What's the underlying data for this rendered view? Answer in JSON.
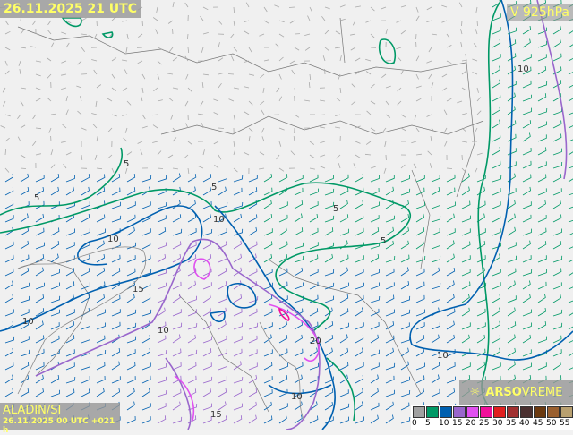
{
  "header": {
    "valid_time": "26.11.2025 21 UTC",
    "level": "V 925hPa"
  },
  "model": {
    "name": "ALADIN/SI",
    "run": "26.11.2025 00 UTC +021 h"
  },
  "brand": {
    "icon": "sun-icon",
    "name_bold": "ARSO",
    "name_rest": "VREME"
  },
  "legend": {
    "ticks": [
      "0",
      "5",
      "10",
      "15",
      "20",
      "25",
      "30",
      "35",
      "40",
      "45",
      "50",
      "55"
    ],
    "colors": [
      "#a0a0a0",
      "#009966",
      "#0060b0",
      "#9966cc",
      "#e050f0",
      "#f0109a",
      "#e02020",
      "#a03030",
      "#4a3030",
      "#6b3a10",
      "#9a6030",
      "#b8a070"
    ]
  },
  "contour_labels": [
    "5",
    "5",
    "5",
    "5",
    "5",
    "10",
    "10",
    "10",
    "10",
    "10",
    "10",
    "10",
    "15",
    "15",
    "20"
  ]
}
